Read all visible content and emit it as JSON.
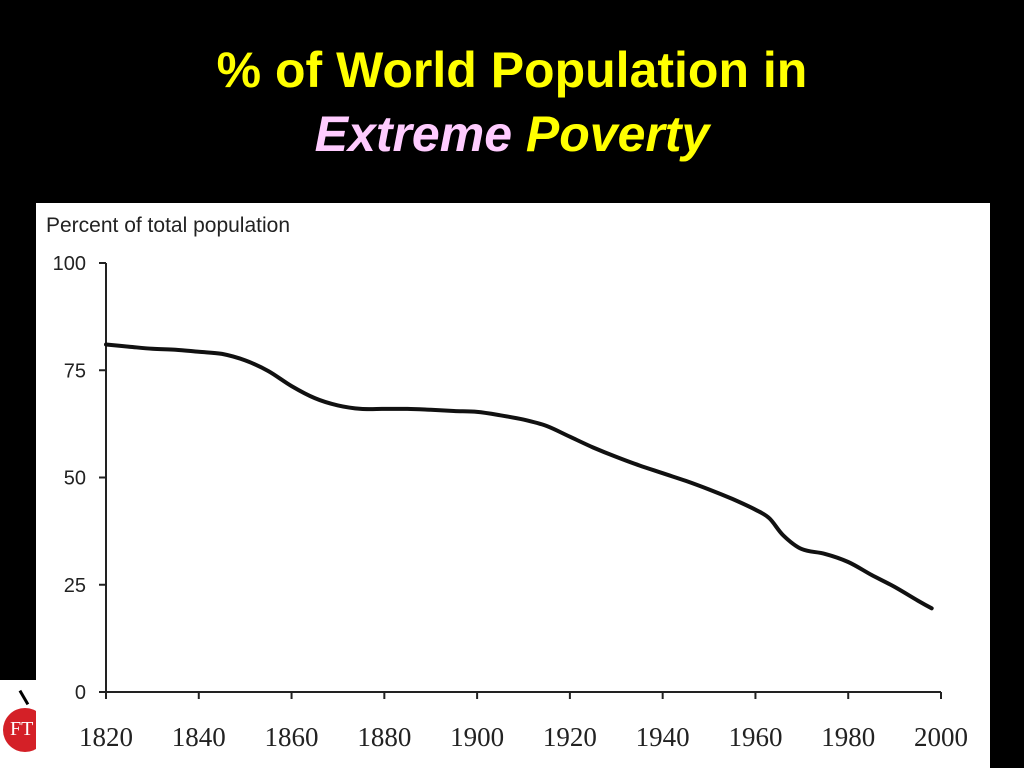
{
  "title": {
    "line1": "% of World Population in",
    "line2_word1": "Extreme",
    "line2_word2": "Poverty",
    "colors": {
      "primary": "#ffff00",
      "accent": "#ffccff"
    }
  },
  "logo": {
    "text": "FT",
    "icon": "apple-logo-icon",
    "color": "#d42027"
  },
  "chart_data": {
    "type": "line",
    "ylabel": "Percent of total population",
    "xlabel": "",
    "xlim": [
      1820,
      2000
    ],
    "ylim": [
      0,
      100
    ],
    "xticks": [
      1820,
      1840,
      1860,
      1880,
      1900,
      1920,
      1940,
      1960,
      1980,
      2000
    ],
    "yticks": [
      0,
      25,
      50,
      75,
      100
    ],
    "grid": false,
    "legend": "none",
    "series": [
      {
        "x": [
          1820,
          1825,
          1830,
          1835,
          1840,
          1845,
          1850,
          1855,
          1860,
          1865,
          1870,
          1875,
          1880,
          1885,
          1890,
          1895,
          1900,
          1905,
          1910,
          1915,
          1920,
          1925,
          1930,
          1935,
          1940,
          1945,
          1950,
          1955,
          1960,
          1963,
          1966,
          1970,
          1975,
          1980,
          1985,
          1990,
          1995,
          1998
        ],
        "y": [
          81,
          80.5,
          80,
          79.8,
          79.3,
          78.8,
          77.3,
          74.8,
          71.3,
          68.5,
          66.8,
          66,
          66,
          66,
          65.8,
          65.5,
          65.3,
          64.5,
          63.5,
          62,
          59.5,
          57,
          54.8,
          52.8,
          51,
          49.2,
          47.2,
          45,
          42.5,
          40.5,
          36.5,
          33.3,
          32.2,
          30.3,
          27.3,
          24.5,
          21.3,
          19.5
        ],
        "color": "#111111"
      }
    ]
  }
}
